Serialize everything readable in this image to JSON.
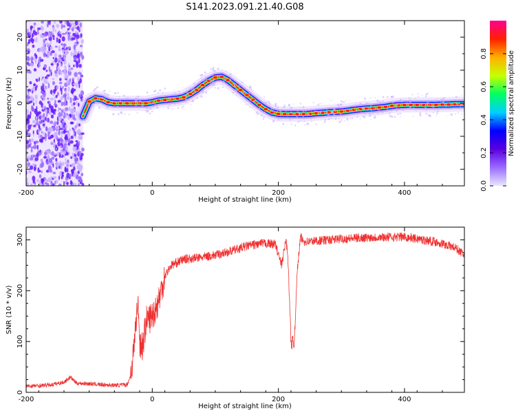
{
  "figure": {
    "title": "S141.2023.091.21.40.G08"
  },
  "chart_data": [
    {
      "type": "heatmap",
      "xlabel": "Height of straight line (km)",
      "ylabel": "Frequency (Hz)",
      "xlim": [
        -200,
        495
      ],
      "ylim": [
        -25,
        25
      ],
      "x_ticks": [
        -200,
        0,
        200,
        400
      ],
      "y_ticks": [
        -20,
        -10,
        0,
        10,
        20
      ],
      "colorbar": {
        "label": "Normalized spectral amplitude",
        "range": [
          0,
          1
        ],
        "ticks": [
          0.0,
          0.2,
          0.4,
          0.6,
          0.8
        ],
        "colors": [
          "#e8e8ff",
          "#9a6bff",
          "#5a00e0",
          "#0000ff",
          "#00d0ff",
          "#00ff60",
          "#c8ff00",
          "#ffb000",
          "#ff2000",
          "#ff0090"
        ]
      },
      "noise_region_x": [
        -200,
        -110
      ],
      "ridge": {
        "x": [
          -110,
          -100,
          -90,
          -80,
          -70,
          -60,
          -50,
          -40,
          -30,
          -20,
          -10,
          0,
          10,
          20,
          30,
          40,
          50,
          60,
          70,
          80,
          90,
          100,
          110,
          120,
          130,
          140,
          150,
          160,
          170,
          180,
          190,
          200,
          210,
          220,
          230,
          240,
          250,
          260,
          270,
          280,
          290,
          300,
          310,
          320,
          330,
          340,
          350,
          360,
          370,
          380,
          390,
          400,
          410,
          420,
          430,
          440,
          450,
          460,
          470,
          480,
          495
        ],
        "y": [
          -4,
          0.5,
          1.5,
          1.2,
          0.3,
          0.0,
          0.0,
          0.0,
          0.0,
          0.0,
          0.0,
          0.3,
          0.8,
          1.0,
          1.2,
          1.4,
          1.8,
          2.8,
          4.0,
          5.5,
          6.8,
          7.8,
          8.0,
          7.0,
          5.5,
          4.0,
          2.5,
          1.0,
          -0.5,
          -1.8,
          -2.8,
          -3.2,
          -3.3,
          -3.3,
          -3.3,
          -3.3,
          -3.2,
          -3.0,
          -2.9,
          -2.7,
          -2.6,
          -2.5,
          -2.3,
          -2.0,
          -1.8,
          -1.6,
          -1.5,
          -1.3,
          -1.1,
          -0.8,
          -0.6,
          -0.5,
          -0.5,
          -0.5,
          -0.5,
          -0.5,
          -0.5,
          -0.4,
          -0.4,
          -0.3,
          -0.3
        ]
      }
    },
    {
      "type": "line",
      "xlabel": "Height of straight line (km)",
      "ylabel": "SNR (10 * v/v)",
      "xlim": [
        -200,
        495
      ],
      "ylim": [
        0,
        325
      ],
      "x_ticks": [
        -200,
        0,
        200,
        400
      ],
      "y_ticks": [
        0,
        100,
        200,
        300
      ],
      "series": [
        {
          "color": "#f03030",
          "x": [
            -200,
            -180,
            -160,
            -140,
            -130,
            -120,
            -100,
            -80,
            -60,
            -40,
            -35,
            -30,
            -25,
            -22,
            -20,
            -15,
            -10,
            0,
            10,
            20,
            30,
            50,
            75,
            100,
            125,
            150,
            175,
            195,
            205,
            212,
            215,
            220,
            225,
            230,
            235,
            240,
            250,
            300,
            350,
            400,
            450,
            480,
            495
          ],
          "y": [
            12,
            13,
            15,
            20,
            30,
            18,
            17,
            15,
            14,
            15,
            30,
            75,
            150,
            170,
            100,
            90,
            140,
            150,
            180,
            230,
            250,
            262,
            265,
            270,
            278,
            288,
            293,
            292,
            250,
            300,
            270,
            100,
            95,
            240,
            305,
            297,
            297,
            302,
            305,
            306,
            296,
            285,
            270
          ]
        }
      ]
    }
  ]
}
